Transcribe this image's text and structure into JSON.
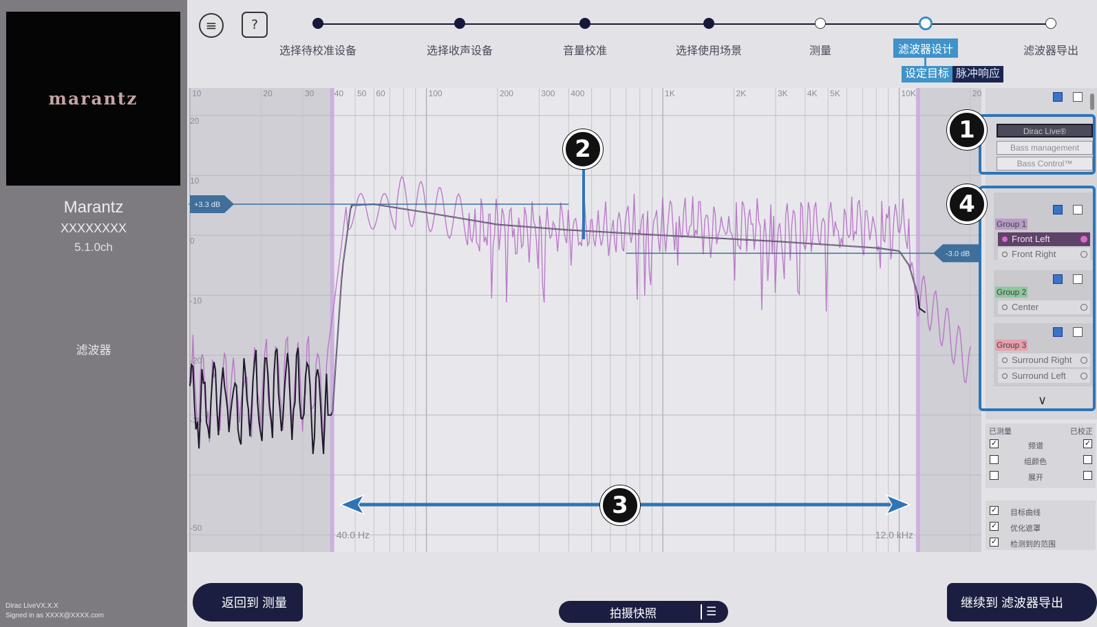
{
  "sidebar": {
    "logo": "marantz",
    "brand": "Marantz",
    "model": "XXXXXXXX",
    "channels": "5.1.0ch",
    "section": "滤波器",
    "version": "Dirac LiveVX.X.X",
    "signed_in": "Signed in as XXXX@XXXX.com"
  },
  "header": {
    "menu_icon": "≡",
    "help_icon": "?",
    "steps": [
      {
        "label": "选择待校准设备",
        "state": "done"
      },
      {
        "label": "选择收声设备",
        "state": "done"
      },
      {
        "label": "音量校准",
        "state": "done"
      },
      {
        "label": "选择使用场景",
        "state": "done"
      },
      {
        "label": "测量",
        "state": "open"
      },
      {
        "label": "滤波器设计",
        "state": "active"
      },
      {
        "label": "滤波器导出",
        "state": "open"
      }
    ],
    "sub_tabs": {
      "target": "设定目标",
      "impulse": "脉冲响应"
    }
  },
  "graph": {
    "freq_ticks": [
      "10",
      "20",
      "30",
      "40",
      "50",
      "60",
      "100",
      "200",
      "300",
      "400",
      "1K",
      "2K",
      "3K",
      "4K",
      "5K",
      "10K",
      "20"
    ],
    "db_ticks": [
      "20",
      "10",
      "0",
      "-10",
      "-20",
      "-30",
      "-50"
    ],
    "target_low_label": "+3.3 dB",
    "target_high_label": "-3.0 dB",
    "range_low_label": "40.0 Hz",
    "range_high_label": "12.0 kHz"
  },
  "callouts": [
    "1",
    "2",
    "3",
    "4"
  ],
  "panel": {
    "modes": [
      {
        "label": "Dirac Live®",
        "selected": true
      },
      {
        "label": "Bass management",
        "selected": false
      },
      {
        "label": "Bass Control™",
        "selected": false
      }
    ],
    "groups": [
      {
        "name": "Group 1",
        "color": "#b99bc6",
        "channels": [
          {
            "label": "Front Left",
            "selected": true
          },
          {
            "label": "Front Right",
            "selected": false
          }
        ]
      },
      {
        "name": "Group 2",
        "color": "#8fc79c",
        "channels": [
          {
            "label": "Center",
            "selected": false
          }
        ]
      },
      {
        "name": "Group 3",
        "color": "#e8a0aa",
        "channels": [
          {
            "label": "Surround Right",
            "selected": false
          },
          {
            "label": "Surround Left",
            "selected": false
          }
        ]
      }
    ],
    "scroll_down_icon": "chevron-down"
  },
  "legend": {
    "measured_header": "已测量",
    "corrected_header": "已校正",
    "rows": [
      {
        "label": "频谱",
        "measured": true,
        "corrected": true
      },
      {
        "label": "组颜色",
        "measured": false,
        "corrected": false
      },
      {
        "label": "展开",
        "measured": false,
        "corrected": false
      }
    ],
    "options": [
      {
        "label": "目标曲线",
        "checked": true
      },
      {
        "label": "优化遮罩",
        "checked": true
      },
      {
        "label": "检测到的范围",
        "checked": true
      }
    ]
  },
  "bottom": {
    "back_label": "返回到 测量",
    "snapshot_label": "拍摄快照",
    "continue_label": "继续到 滤波器导出"
  },
  "colors": {
    "accent": "#3f93c9",
    "navy": "#1b1e40",
    "measured_curve": "#b466c4",
    "corrected_curve": "#1d1a2a",
    "target_line": "#3a6e9e"
  }
}
